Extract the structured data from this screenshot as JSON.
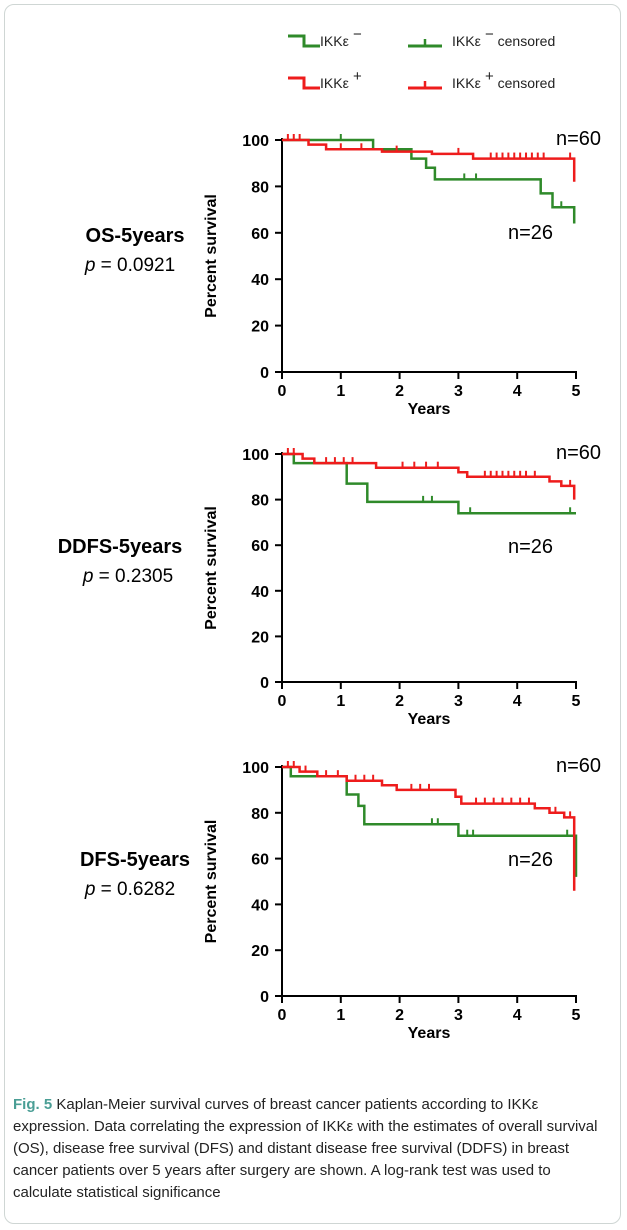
{
  "legend": {
    "items": [
      {
        "label": "IKKε",
        "sup": "−",
        "suffix": "",
        "color": "#2f8a2a",
        "censored": false
      },
      {
        "label": "IKKε",
        "sup": "−",
        "suffix": "censored",
        "color": "#2f8a2a",
        "censored": true
      },
      {
        "label": "IKKε",
        "sup": "+",
        "suffix": "",
        "color": "#ee1c1c",
        "censored": false
      },
      {
        "label": "IKKε",
        "sup": "+",
        "suffix": "censored",
        "color": "#ee1c1c",
        "censored": true
      }
    ]
  },
  "chart_data": [
    {
      "type": "line",
      "step": true,
      "panel_label": "OS-5years",
      "p_prefix": "p",
      "p_value": "= 0.0921",
      "xlabel": "Years",
      "ylabel": "Percent survival",
      "xlim": [
        0,
        5
      ],
      "ylim": [
        0,
        100
      ],
      "xticks": [
        "0",
        "1",
        "2",
        "3",
        "4",
        "5"
      ],
      "yticks": [
        "0",
        "20",
        "40",
        "60",
        "80",
        "100"
      ],
      "n_annotations": [
        {
          "text": "n=60",
          "position": "top-right"
        },
        {
          "text": "n=26",
          "position": "below-right"
        }
      ],
      "series": [
        {
          "key": "IKKε−",
          "color": "#2f8a2a",
          "steps": [
            [
              0,
              100
            ],
            [
              1.55,
              100
            ],
            [
              1.55,
              96
            ],
            [
              2.2,
              96
            ],
            [
              2.2,
              92
            ],
            [
              2.45,
              92
            ],
            [
              2.45,
              88
            ],
            [
              2.6,
              88
            ],
            [
              2.6,
              83
            ],
            [
              4.4,
              83
            ],
            [
              4.4,
              77
            ],
            [
              4.6,
              77
            ],
            [
              4.6,
              71
            ],
            [
              4.97,
              71
            ],
            [
              4.97,
              64
            ]
          ],
          "censored": [
            [
              1.0,
              100
            ],
            [
              3.1,
              83
            ],
            [
              3.3,
              83
            ],
            [
              4.75,
              71
            ]
          ]
        },
        {
          "key": "IKKε+",
          "color": "#ee1c1c",
          "steps": [
            [
              0,
              100
            ],
            [
              0.45,
              100
            ],
            [
              0.45,
              98
            ],
            [
              0.75,
              98
            ],
            [
              0.75,
              96
            ],
            [
              1.7,
              96
            ],
            [
              1.7,
              95
            ],
            [
              2.55,
              95
            ],
            [
              2.55,
              94
            ],
            [
              3.25,
              94
            ],
            [
              3.25,
              92
            ],
            [
              4.97,
              92
            ],
            [
              4.97,
              82
            ]
          ],
          "censored": [
            [
              0.1,
              100
            ],
            [
              0.2,
              100
            ],
            [
              0.3,
              100
            ],
            [
              1.0,
              96
            ],
            [
              1.35,
              96
            ],
            [
              1.95,
              95
            ],
            [
              3.0,
              94
            ],
            [
              3.55,
              92
            ],
            [
              3.65,
              92
            ],
            [
              3.75,
              92
            ],
            [
              3.85,
              92
            ],
            [
              3.95,
              92
            ],
            [
              4.05,
              92
            ],
            [
              4.15,
              92
            ],
            [
              4.25,
              92
            ],
            [
              4.35,
              92
            ],
            [
              4.45,
              92
            ],
            [
              4.9,
              92
            ]
          ]
        }
      ]
    },
    {
      "type": "line",
      "step": true,
      "panel_label": "DDFS-5years",
      "p_prefix": "p",
      "p_value": "= 0.2305",
      "xlabel": "Years",
      "ylabel": "Percent survival",
      "xlim": [
        0,
        5
      ],
      "ylim": [
        0,
        100
      ],
      "xticks": [
        "0",
        "1",
        "2",
        "3",
        "4",
        "5"
      ],
      "yticks": [
        "0",
        "20",
        "40",
        "60",
        "80",
        "100"
      ],
      "n_annotations": [
        {
          "text": "n=60",
          "position": "top-right"
        },
        {
          "text": "n=26",
          "position": "below-right"
        }
      ],
      "series": [
        {
          "key": "IKKε−",
          "color": "#2f8a2a",
          "steps": [
            [
              0,
              100
            ],
            [
              0.2,
              100
            ],
            [
              0.2,
              96
            ],
            [
              1.1,
              96
            ],
            [
              1.1,
              87
            ],
            [
              1.45,
              87
            ],
            [
              1.45,
              79
            ],
            [
              3.0,
              79
            ],
            [
              3.0,
              74
            ],
            [
              5.0,
              74
            ]
          ],
          "censored": [
            [
              2.4,
              79
            ],
            [
              2.55,
              79
            ],
            [
              3.2,
              74
            ],
            [
              4.9,
              74
            ]
          ]
        },
        {
          "key": "IKKε+",
          "color": "#ee1c1c",
          "steps": [
            [
              0,
              100
            ],
            [
              0.35,
              100
            ],
            [
              0.35,
              98
            ],
            [
              0.55,
              98
            ],
            [
              0.55,
              96
            ],
            [
              1.6,
              96
            ],
            [
              1.6,
              94
            ],
            [
              3.0,
              94
            ],
            [
              3.0,
              92
            ],
            [
              3.15,
              92
            ],
            [
              3.15,
              90
            ],
            [
              4.55,
              90
            ],
            [
              4.55,
              88
            ],
            [
              4.75,
              88
            ],
            [
              4.75,
              86
            ],
            [
              4.97,
              86
            ],
            [
              4.97,
              80
            ]
          ],
          "censored": [
            [
              0.1,
              100
            ],
            [
              0.2,
              100
            ],
            [
              0.75,
              96
            ],
            [
              0.9,
              96
            ],
            [
              1.05,
              96
            ],
            [
              1.2,
              96
            ],
            [
              2.05,
              94
            ],
            [
              2.25,
              94
            ],
            [
              2.45,
              94
            ],
            [
              2.65,
              94
            ],
            [
              3.45,
              90
            ],
            [
              3.55,
              90
            ],
            [
              3.65,
              90
            ],
            [
              3.75,
              90
            ],
            [
              3.85,
              90
            ],
            [
              3.95,
              90
            ],
            [
              4.05,
              90
            ],
            [
              4.15,
              90
            ],
            [
              4.3,
              90
            ],
            [
              4.9,
              86
            ]
          ]
        }
      ]
    },
    {
      "type": "line",
      "step": true,
      "panel_label": "DFS-5years",
      "p_prefix": "p",
      "p_value": "= 0.6282",
      "xlabel": "Years",
      "ylabel": "Percent survival",
      "xlim": [
        0,
        5
      ],
      "ylim": [
        0,
        100
      ],
      "xticks": [
        "0",
        "1",
        "2",
        "3",
        "4",
        "5"
      ],
      "yticks": [
        "0",
        "20",
        "40",
        "60",
        "80",
        "100"
      ],
      "n_annotations": [
        {
          "text": "n=60",
          "position": "top-right"
        },
        {
          "text": "n=26",
          "position": "below-right"
        }
      ],
      "series": [
        {
          "key": "IKKε−",
          "color": "#2f8a2a",
          "steps": [
            [
              0,
              100
            ],
            [
              0.15,
              100
            ],
            [
              0.15,
              96
            ],
            [
              1.1,
              96
            ],
            [
              1.1,
              88
            ],
            [
              1.3,
              88
            ],
            [
              1.3,
              83
            ],
            [
              1.4,
              83
            ],
            [
              1.4,
              75
            ],
            [
              3.0,
              75
            ],
            [
              3.0,
              70
            ],
            [
              5.0,
              70
            ],
            [
              5.0,
              52
            ]
          ],
          "censored": [
            [
              2.55,
              75
            ],
            [
              2.65,
              75
            ],
            [
              3.15,
              70
            ],
            [
              3.25,
              70
            ],
            [
              4.85,
              70
            ]
          ]
        },
        {
          "key": "IKKε+",
          "color": "#ee1c1c",
          "steps": [
            [
              0,
              100
            ],
            [
              0.3,
              100
            ],
            [
              0.3,
              98
            ],
            [
              0.6,
              98
            ],
            [
              0.6,
              96
            ],
            [
              1.1,
              96
            ],
            [
              1.1,
              94
            ],
            [
              1.7,
              94
            ],
            [
              1.7,
              92
            ],
            [
              1.95,
              92
            ],
            [
              1.95,
              90
            ],
            [
              2.95,
              90
            ],
            [
              2.95,
              87
            ],
            [
              3.05,
              87
            ],
            [
              3.05,
              84
            ],
            [
              4.3,
              84
            ],
            [
              4.3,
              82
            ],
            [
              4.55,
              82
            ],
            [
              4.55,
              80
            ],
            [
              4.8,
              80
            ],
            [
              4.8,
              78
            ],
            [
              4.97,
              78
            ],
            [
              4.97,
              46
            ]
          ],
          "censored": [
            [
              0.1,
              100
            ],
            [
              0.2,
              100
            ],
            [
              0.4,
              98
            ],
            [
              0.75,
              96
            ],
            [
              0.95,
              96
            ],
            [
              1.25,
              94
            ],
            [
              1.4,
              94
            ],
            [
              1.55,
              94
            ],
            [
              2.2,
              90
            ],
            [
              2.35,
              90
            ],
            [
              2.5,
              90
            ],
            [
              3.3,
              84
            ],
            [
              3.45,
              84
            ],
            [
              3.6,
              84
            ],
            [
              3.75,
              84
            ],
            [
              3.9,
              84
            ],
            [
              4.05,
              84
            ],
            [
              4.2,
              84
            ],
            [
              4.65,
              80
            ],
            [
              4.9,
              78
            ]
          ]
        }
      ]
    }
  ],
  "caption": {
    "fig_label": "Fig. 5",
    "text": "Kaplan-Meier survival curves of breast cancer patients according to IKKε expression. Data correlating the expression of IKKε with the estimates of overall survival (OS), disease free survival (DFS) and distant disease free survival (DDFS) in breast cancer patients over 5 years after surgery are shown. A log-rank test was used to calculate statistical significance"
  }
}
